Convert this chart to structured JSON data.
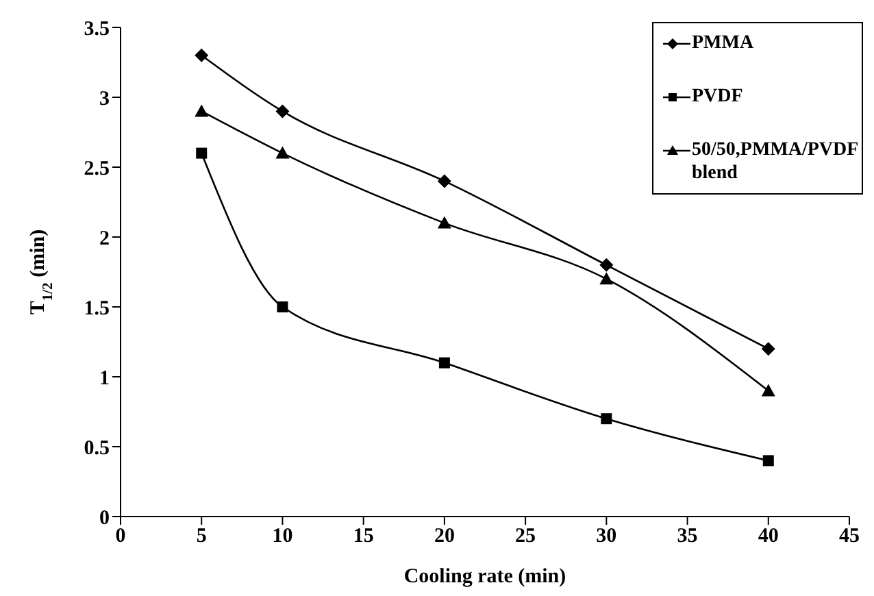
{
  "chart_data": {
    "type": "line",
    "xlabel": "Cooling rate (min)",
    "ylabel": "T$_{1/2}$ (min)",
    "x": [
      5,
      10,
      20,
      30,
      40
    ],
    "series": [
      {
        "name": "PMMA",
        "color": "#000000",
        "marker": "diamond",
        "values": [
          3.3,
          2.9,
          2.4,
          1.8,
          1.2
        ]
      },
      {
        "name": "PVDF",
        "color": "#000000",
        "marker": "square",
        "values": [
          2.6,
          1.5,
          1.1,
          0.7,
          0.4
        ]
      },
      {
        "name": "50/50,PMMA/PVDF blend",
        "color": "#000000",
        "marker": "triangle",
        "values": [
          2.9,
          2.6,
          2.1,
          1.7,
          0.9
        ]
      }
    ],
    "xlim": [
      0,
      45
    ],
    "xticks": [
      0,
      5,
      10,
      15,
      20,
      25,
      30,
      35,
      40,
      45
    ],
    "ylim": [
      0,
      3.5
    ],
    "yticks": [
      0,
      0.5,
      1,
      1.5,
      2,
      2.5,
      3,
      3.5
    ],
    "legend": "top right",
    "line_style": "solid"
  }
}
